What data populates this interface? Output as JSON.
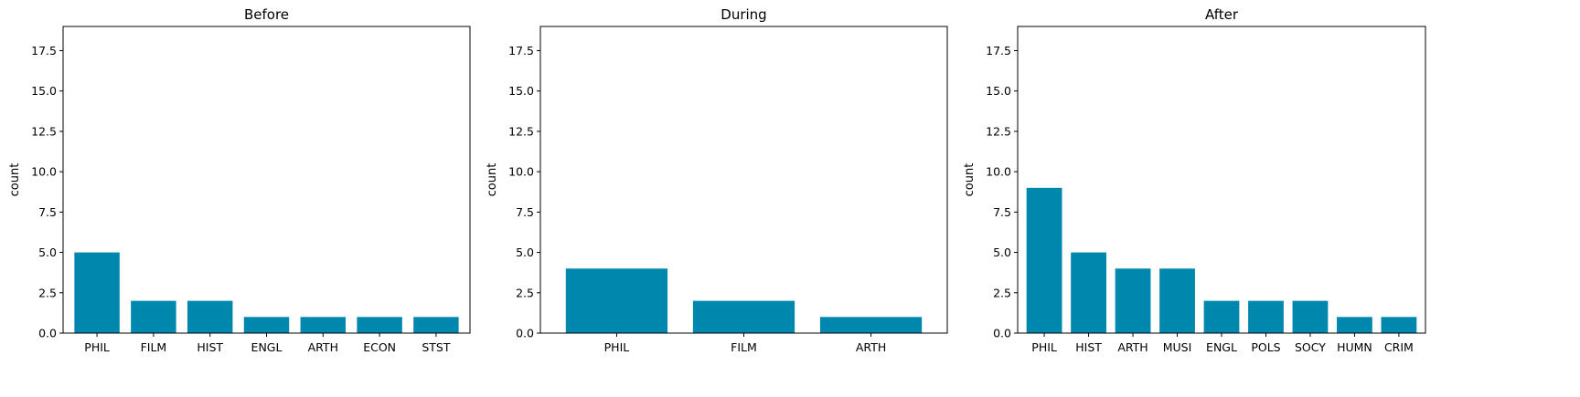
{
  "colors": {
    "bar": "#0087ad",
    "axis": "#000000",
    "background": "#ffffff"
  },
  "chart_data": [
    {
      "type": "bar",
      "title": "Before",
      "xlabel": "",
      "ylabel": "count",
      "ylim": [
        0,
        19
      ],
      "yticks": [
        "0.0",
        "2.5",
        "5.0",
        "7.5",
        "10.0",
        "12.5",
        "15.0",
        "17.5"
      ],
      "categories": [
        "PHIL",
        "FILM",
        "HIST",
        "ENGL",
        "ARTH",
        "ECON",
        "STST"
      ],
      "values": [
        5,
        2,
        2,
        1,
        1,
        1,
        1
      ],
      "grid": false
    },
    {
      "type": "bar",
      "title": "During",
      "xlabel": "",
      "ylabel": "count",
      "ylim": [
        0,
        19
      ],
      "yticks": [
        "0.0",
        "2.5",
        "5.0",
        "7.5",
        "10.0",
        "12.5",
        "15.0",
        "17.5"
      ],
      "categories": [
        "PHIL",
        "FILM",
        "ARTH"
      ],
      "values": [
        4,
        2,
        1
      ],
      "grid": false
    },
    {
      "type": "bar",
      "title": "After",
      "xlabel": "",
      "ylabel": "count",
      "ylim": [
        0,
        19
      ],
      "yticks": [
        "0.0",
        "2.5",
        "5.0",
        "7.5",
        "10.0",
        "12.5",
        "15.0",
        "17.5"
      ],
      "categories": [
        "PHIL",
        "HIST",
        "ARTH",
        "MUSI",
        "ENGL",
        "POLS",
        "SOCY",
        "HUMN",
        "CRIM"
      ],
      "values": [
        9,
        5,
        4,
        4,
        2,
        2,
        2,
        1,
        1
      ],
      "grid": false
    }
  ]
}
